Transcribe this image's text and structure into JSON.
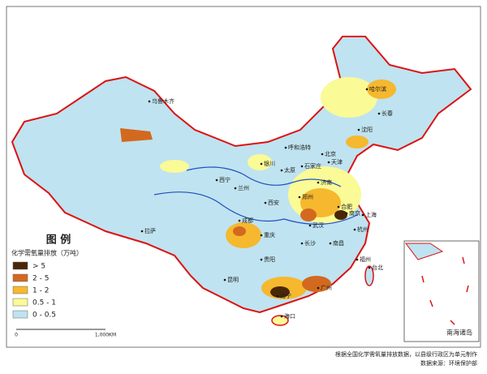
{
  "legend": {
    "title": "图  例",
    "subtitle": "化学需氧量排放（万吨）",
    "items": [
      {
        "label": "> 5",
        "color": "#4a2608"
      },
      {
        "label": "2 - 5",
        "color": "#d2691e"
      },
      {
        "label": "1 - 2",
        "color": "#f5b82e"
      },
      {
        "label": "0.5 - 1",
        "color": "#fafa96"
      },
      {
        "label": "0 - 0.5",
        "color": "#bfe3f0"
      }
    ]
  },
  "scale_bar": {
    "labels": [
      "0",
      "1,000KM"
    ]
  },
  "inset": {
    "title": "南海诸岛"
  },
  "cities": [
    "乌鲁木齐",
    "哈尔滨",
    "长春",
    "沈阳",
    "呼和浩特",
    "北京",
    "天津",
    "石家庄",
    "太原",
    "银川",
    "济南",
    "西宁",
    "兰州",
    "郑州",
    "西安",
    "合肥",
    "南京",
    "上海",
    "成都",
    "武汉",
    "重庆",
    "杭州",
    "长沙",
    "南昌",
    "贵阳",
    "福州",
    "台北",
    "昆明",
    "南宁",
    "广州",
    "海口",
    "拉萨"
  ],
  "footnote": [
    "根据全国化学需氧量排放数据，以县级行政区为单元制作",
    "数据来源：环境保护部"
  ]
}
